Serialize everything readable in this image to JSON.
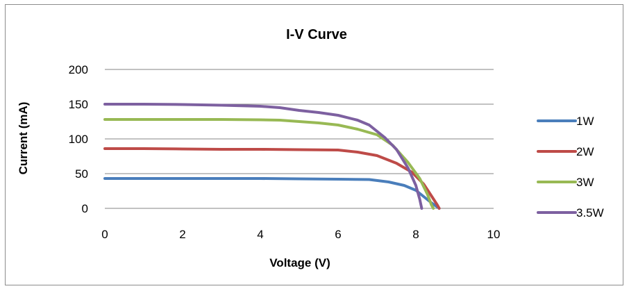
{
  "chart_data": {
    "type": "line",
    "title": "I-V Curve",
    "xlabel": "Voltage (V)",
    "ylabel": "Current (mA)",
    "xlim": [
      0,
      10
    ],
    "ylim": [
      0,
      200
    ],
    "x_ticks": [
      "0",
      "2",
      "4",
      "6",
      "8",
      "10"
    ],
    "y_ticks": [
      "0",
      "50",
      "100",
      "150",
      "200"
    ],
    "grid": "horizontal",
    "legend_position": "right",
    "series": [
      {
        "name": "1W",
        "color": "#4a7ebb",
        "points": [
          [
            0,
            43
          ],
          [
            1,
            43
          ],
          [
            2,
            43
          ],
          [
            3,
            43
          ],
          [
            4,
            43
          ],
          [
            5,
            42.5
          ],
          [
            6,
            42
          ],
          [
            6.8,
            41.5
          ],
          [
            7.3,
            38
          ],
          [
            7.7,
            33
          ],
          [
            8.0,
            26
          ],
          [
            8.2,
            17
          ],
          [
            8.4,
            8
          ],
          [
            8.55,
            2
          ],
          [
            8.6,
            0
          ]
        ]
      },
      {
        "name": "2W",
        "color": "#be4b48",
        "points": [
          [
            0,
            86
          ],
          [
            1,
            86
          ],
          [
            2,
            85.5
          ],
          [
            3,
            85
          ],
          [
            4,
            85
          ],
          [
            5,
            84.5
          ],
          [
            6,
            84
          ],
          [
            6.5,
            81
          ],
          [
            7.0,
            76
          ],
          [
            7.5,
            65
          ],
          [
            7.9,
            52
          ],
          [
            8.2,
            35
          ],
          [
            8.4,
            18
          ],
          [
            8.55,
            5
          ],
          [
            8.6,
            0
          ]
        ]
      },
      {
        "name": "3W",
        "color": "#98b954",
        "points": [
          [
            0,
            128
          ],
          [
            1,
            128
          ],
          [
            2,
            128
          ],
          [
            3,
            128
          ],
          [
            4,
            127.5
          ],
          [
            4.5,
            127
          ],
          [
            5,
            125
          ],
          [
            5.5,
            123
          ],
          [
            6,
            120
          ],
          [
            6.5,
            114
          ],
          [
            7.0,
            106
          ],
          [
            7.4,
            91
          ],
          [
            7.8,
            66
          ],
          [
            8.1,
            43
          ],
          [
            8.3,
            20
          ],
          [
            8.4,
            5
          ],
          [
            8.45,
            0
          ]
        ]
      },
      {
        "name": "3.5W",
        "color": "#7d60a0",
        "points": [
          [
            0,
            150
          ],
          [
            1,
            150
          ],
          [
            2,
            149.5
          ],
          [
            3,
            148.5
          ],
          [
            4,
            147
          ],
          [
            4.5,
            145
          ],
          [
            5,
            141
          ],
          [
            5.5,
            138
          ],
          [
            6,
            134
          ],
          [
            6.5,
            127
          ],
          [
            6.8,
            120
          ],
          [
            7.2,
            102
          ],
          [
            7.5,
            85
          ],
          [
            7.8,
            58
          ],
          [
            8.0,
            33
          ],
          [
            8.1,
            13
          ],
          [
            8.15,
            0
          ]
        ]
      }
    ]
  }
}
